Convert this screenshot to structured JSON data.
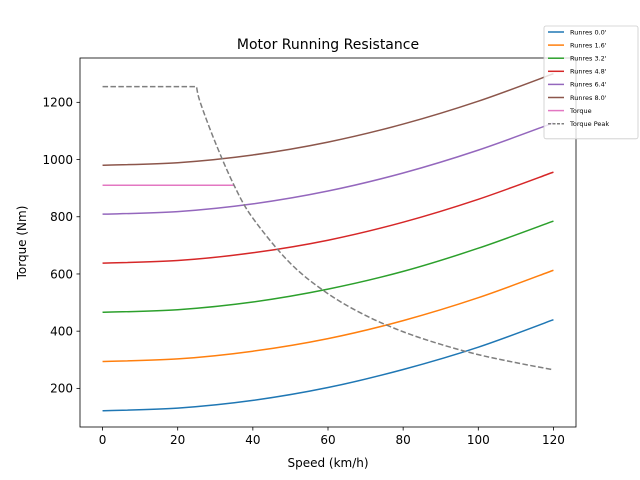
{
  "chart_data": {
    "type": "line",
    "title": "Motor Running Resistance",
    "xlabel": "Speed (km/h)",
    "ylabel": "Torque (Nm)",
    "xlim": [
      -6,
      126
    ],
    "ylim": [
      65,
      1355
    ],
    "xticks": [
      0,
      20,
      40,
      60,
      80,
      100,
      120
    ],
    "yticks": [
      200,
      400,
      600,
      800,
      1000,
      1200
    ],
    "grid": false,
    "legend_position": "top-right",
    "x_range": [
      0,
      120
    ],
    "series": [
      {
        "name": "Runres 0.0'",
        "color": "#1f77b4",
        "style": "solid",
        "x": [
          0,
          20,
          40,
          60,
          80,
          100,
          120
        ],
        "y": [
          122,
          131,
          158,
          203,
          266,
          344,
          440
        ]
      },
      {
        "name": "Runres 1.6'",
        "color": "#ff7f0e",
        "style": "solid",
        "x": [
          0,
          20,
          40,
          60,
          80,
          100,
          120
        ],
        "y": [
          294,
          303,
          330,
          374,
          437,
          517,
          613
        ]
      },
      {
        "name": "Runres 3.2'",
        "color": "#2ca02c",
        "style": "solid",
        "x": [
          0,
          20,
          40,
          60,
          80,
          100,
          120
        ],
        "y": [
          466,
          475,
          502,
          547,
          609,
          690,
          785
        ]
      },
      {
        "name": "Runres 4.8'",
        "color": "#d62728",
        "style": "solid",
        "x": [
          0,
          20,
          40,
          60,
          80,
          100,
          120
        ],
        "y": [
          638,
          647,
          674,
          718,
          781,
          861,
          956
        ]
      },
      {
        "name": "Runres 6.4'",
        "color": "#9467bd",
        "style": "solid",
        "x": [
          0,
          20,
          40,
          60,
          80,
          100,
          120
        ],
        "y": [
          809,
          818,
          845,
          890,
          953,
          1033,
          1128
        ]
      },
      {
        "name": "Runres 8.0'",
        "color": "#8c564b",
        "style": "solid",
        "x": [
          0,
          20,
          40,
          60,
          80,
          100,
          120
        ],
        "y": [
          980,
          989,
          1016,
          1061,
          1124,
          1204,
          1300
        ]
      },
      {
        "name": "Torque",
        "color": "#e377c2",
        "style": "solid",
        "x": [
          0,
          35
        ],
        "y": [
          910,
          910
        ]
      },
      {
        "name": "Torque Peak",
        "color": "#7f7f7f",
        "style": "dashed",
        "x": [
          0,
          25,
          26,
          30,
          35,
          40,
          50,
          60,
          70,
          80,
          90,
          100,
          110,
          120
        ],
        "y": [
          1255,
          1255,
          1200,
          1060,
          910,
          795,
          637,
          531,
          455,
          398,
          354,
          318,
          290,
          265
        ]
      }
    ]
  }
}
